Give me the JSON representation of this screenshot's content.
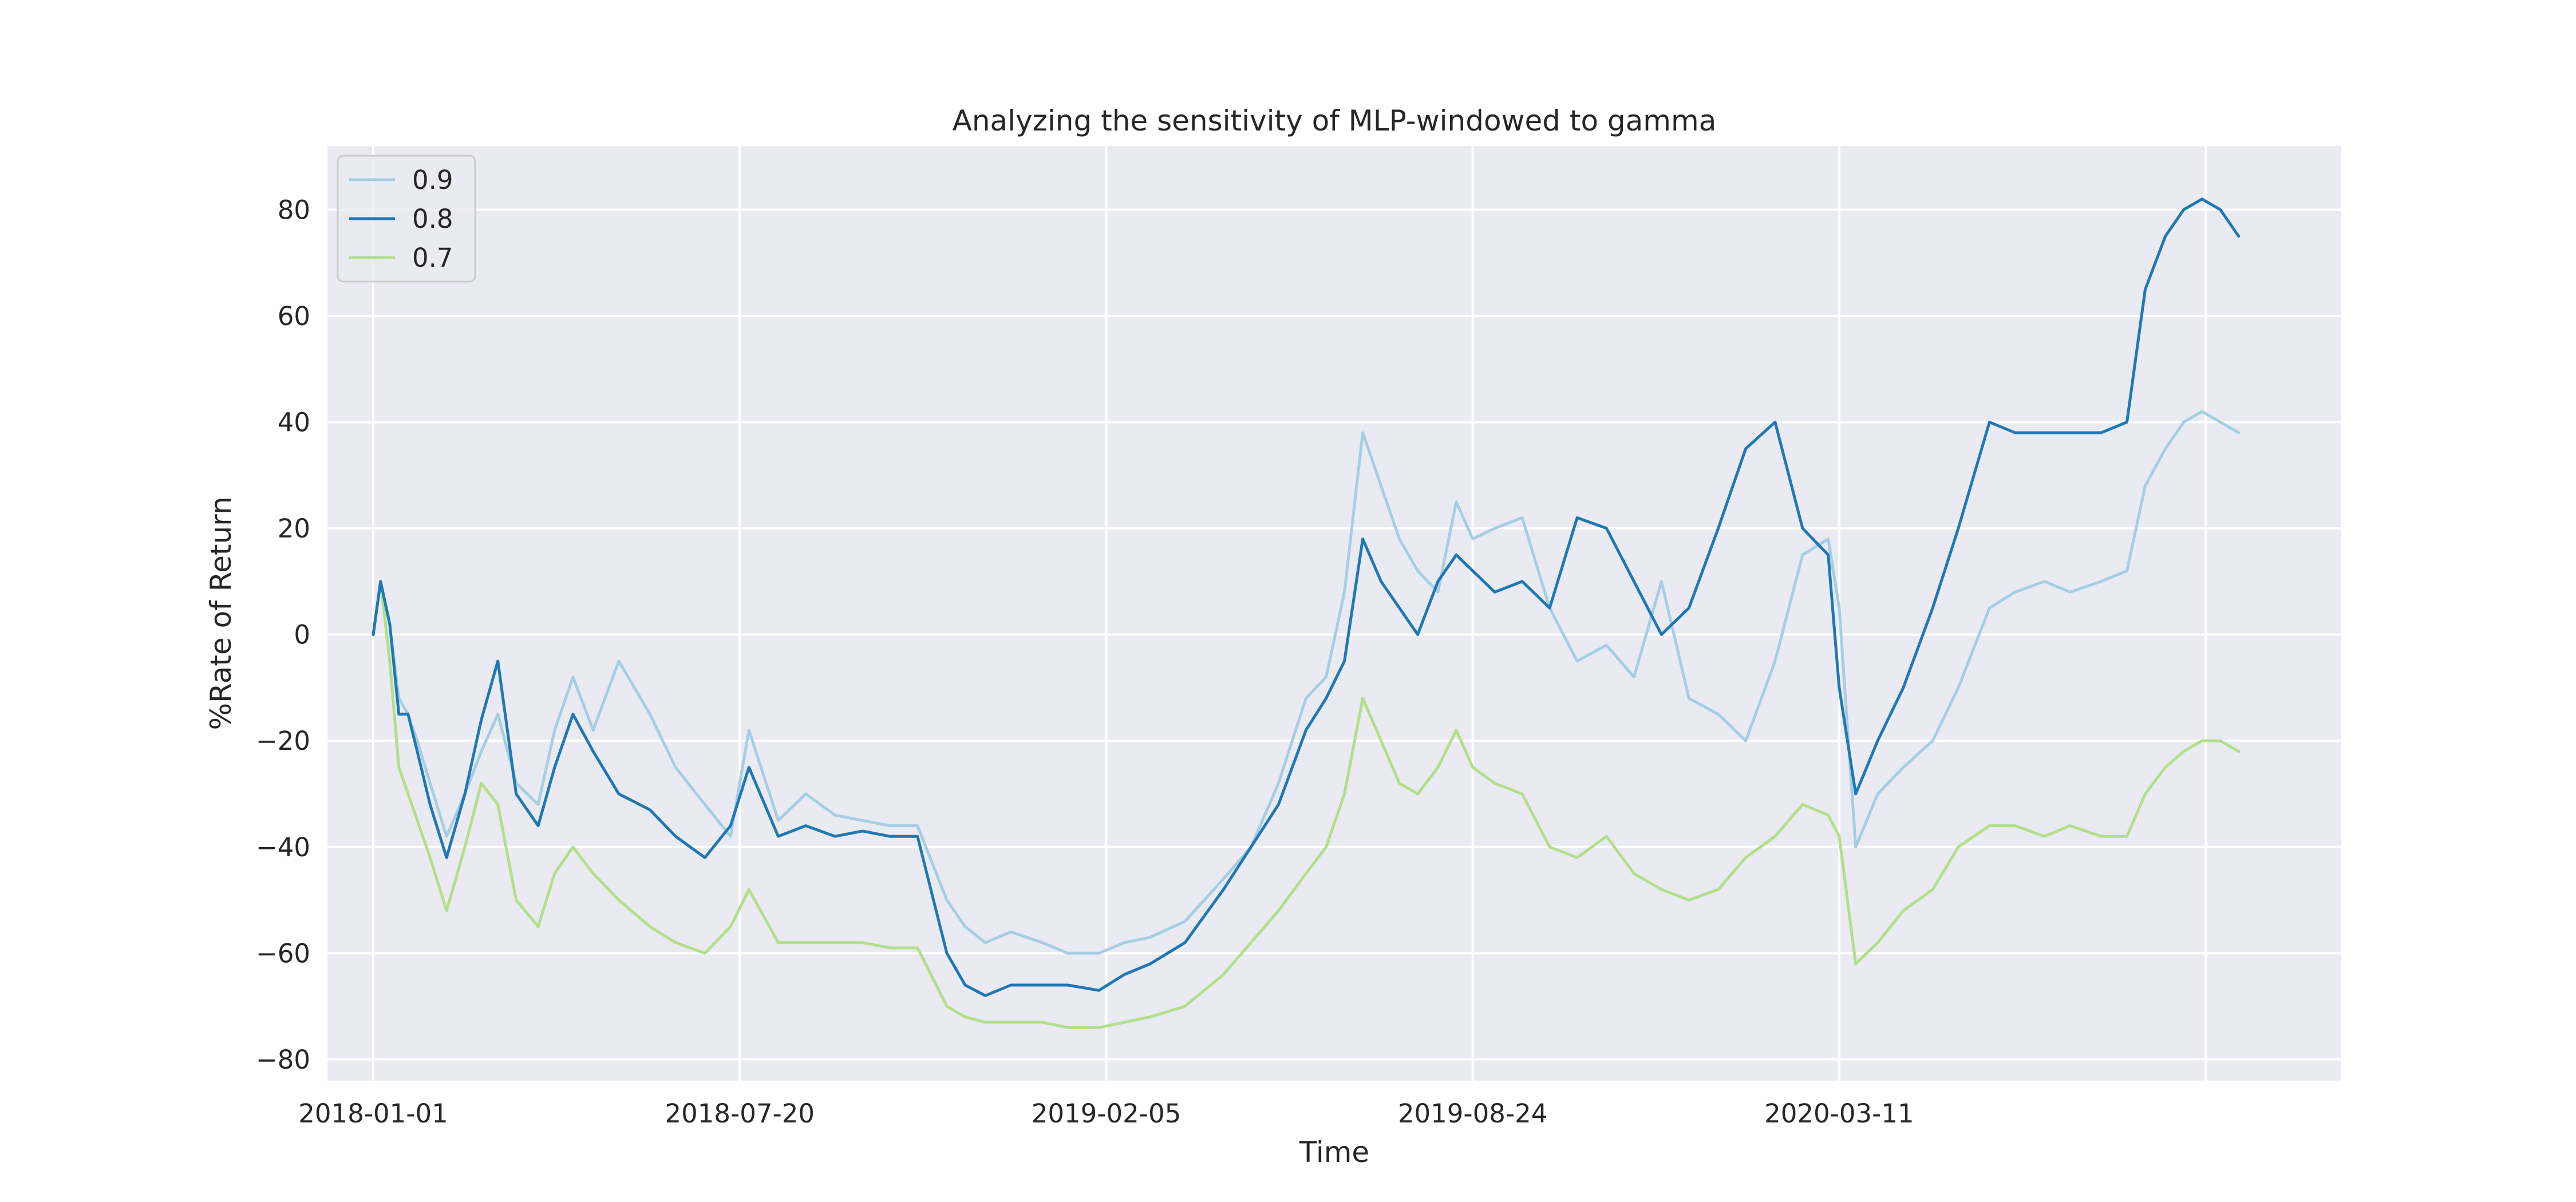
{
  "colors": {
    "plot_background": "#eaeaf2",
    "grid": "#ffffff",
    "series_0.9": "#a6cee3",
    "series_0.8": "#1f78b4",
    "series_0.7": "#b2df8a"
  },
  "chart_data": {
    "type": "line",
    "title": "Analyzing the sensitivity of MLP-windowed to gamma",
    "xlabel": "Time",
    "ylabel": "%Rate of Return",
    "x_axis_type": "date",
    "xlim": [
      "2017-12-07",
      "2020-12-10"
    ],
    "ylim": [
      -84,
      92
    ],
    "x_ticks": [
      "2018-01-01",
      "2018-07-20",
      "2019-02-05",
      "2019-08-24",
      "2020-03-11"
    ],
    "y_ticks": [
      -80,
      -60,
      -40,
      -20,
      0,
      20,
      40,
      60,
      80
    ],
    "y_tick_labels": [
      "−80",
      "−60",
      "−40",
      "−20",
      "0",
      "20",
      "40",
      "60",
      "80"
    ],
    "grid": true,
    "legend": "top-left",
    "x": [
      "2018-01-01",
      "2018-01-05",
      "2018-01-10",
      "2018-01-15",
      "2018-01-20",
      "2018-01-25",
      "2018-02-01",
      "2018-02-10",
      "2018-02-20",
      "2018-03-01",
      "2018-03-10",
      "2018-03-20",
      "2018-04-01",
      "2018-04-10",
      "2018-04-20",
      "2018-05-01",
      "2018-05-15",
      "2018-06-01",
      "2018-06-15",
      "2018-07-01",
      "2018-07-15",
      "2018-07-25",
      "2018-08-10",
      "2018-08-25",
      "2018-09-10",
      "2018-09-25",
      "2018-10-10",
      "2018-10-25",
      "2018-11-10",
      "2018-11-20",
      "2018-12-01",
      "2018-12-15",
      "2019-01-01",
      "2019-01-15",
      "2019-02-01",
      "2019-02-15",
      "2019-03-01",
      "2019-03-20",
      "2019-04-10",
      "2019-04-25",
      "2019-05-10",
      "2019-05-25",
      "2019-06-05",
      "2019-06-15",
      "2019-06-25",
      "2019-07-05",
      "2019-07-15",
      "2019-07-25",
      "2019-08-05",
      "2019-08-15",
      "2019-08-24",
      "2019-09-05",
      "2019-09-20",
      "2019-10-05",
      "2019-10-20",
      "2019-11-05",
      "2019-11-20",
      "2019-12-05",
      "2019-12-20",
      "2020-01-05",
      "2020-01-20",
      "2020-02-05",
      "2020-02-20",
      "2020-03-05",
      "2020-03-11",
      "2020-03-20",
      "2020-04-01",
      "2020-04-15",
      "2020-05-01",
      "2020-05-15",
      "2020-06-01",
      "2020-06-15",
      "2020-07-01",
      "2020-07-15",
      "2020-08-01",
      "2020-08-15",
      "2020-08-25",
      "2020-09-05",
      "2020-09-15",
      "2020-09-25",
      "2020-10-05",
      "2020-10-15"
    ],
    "series": [
      {
        "name": "0.9",
        "color": "#a6cee3",
        "values": [
          0,
          10,
          2,
          -12,
          -15,
          -20,
          -28,
          -38,
          -30,
          -22,
          -15,
          -28,
          -32,
          -18,
          -8,
          -18,
          -5,
          -15,
          -25,
          -32,
          -38,
          -18,
          -35,
          -30,
          -34,
          -35,
          -36,
          -36,
          -50,
          -55,
          -58,
          -56,
          -58,
          -60,
          -60,
          -58,
          -57,
          -54,
          -46,
          -40,
          -28,
          -12,
          -8,
          8,
          38,
          28,
          18,
          12,
          8,
          25,
          18,
          20,
          22,
          5,
          -5,
          -2,
          -8,
          10,
          -12,
          -15,
          -20,
          -5,
          15,
          18,
          5,
          -40,
          -30,
          -25,
          -20,
          -10,
          5,
          8,
          10,
          8,
          10,
          12,
          28,
          35,
          40,
          42,
          40,
          38
        ]
      },
      {
        "name": "0.8",
        "color": "#1f78b4",
        "values": [
          0,
          10,
          2,
          -15,
          -15,
          -22,
          -32,
          -42,
          -30,
          -16,
          -5,
          -30,
          -36,
          -25,
          -15,
          -22,
          -30,
          -33,
          -38,
          -42,
          -36,
          -25,
          -38,
          -36,
          -38,
          -37,
          -38,
          -38,
          -60,
          -66,
          -68,
          -66,
          -66,
          -66,
          -67,
          -64,
          -62,
          -58,
          -48,
          -40,
          -32,
          -18,
          -12,
          -5,
          18,
          10,
          5,
          0,
          10,
          15,
          12,
          8,
          10,
          5,
          22,
          20,
          10,
          0,
          5,
          20,
          35,
          40,
          20,
          15,
          -10,
          -30,
          -20,
          -10,
          5,
          20,
          40,
          38,
          38,
          38,
          38,
          40,
          65,
          75,
          80,
          82,
          80,
          75
        ]
      },
      {
        "name": "0.7",
        "color": "#b2df8a",
        "values": [
          0,
          10,
          -5,
          -25,
          -30,
          -35,
          -42,
          -52,
          -40,
          -28,
          -32,
          -50,
          -55,
          -45,
          -40,
          -45,
          -50,
          -55,
          -58,
          -60,
          -55,
          -48,
          -58,
          -58,
          -58,
          -58,
          -59,
          -59,
          -70,
          -72,
          -73,
          -73,
          -73,
          -74,
          -74,
          -73,
          -72,
          -70,
          -64,
          -58,
          -52,
          -45,
          -40,
          -30,
          -12,
          -20,
          -28,
          -30,
          -25,
          -18,
          -25,
          -28,
          -30,
          -40,
          -42,
          -38,
          -45,
          -48,
          -50,
          -48,
          -42,
          -38,
          -32,
          -34,
          -38,
          -62,
          -58,
          -52,
          -48,
          -40,
          -36,
          -36,
          -38,
          -36,
          -38,
          -38,
          -30,
          -25,
          -22,
          -20,
          -20,
          -22
        ]
      }
    ]
  }
}
